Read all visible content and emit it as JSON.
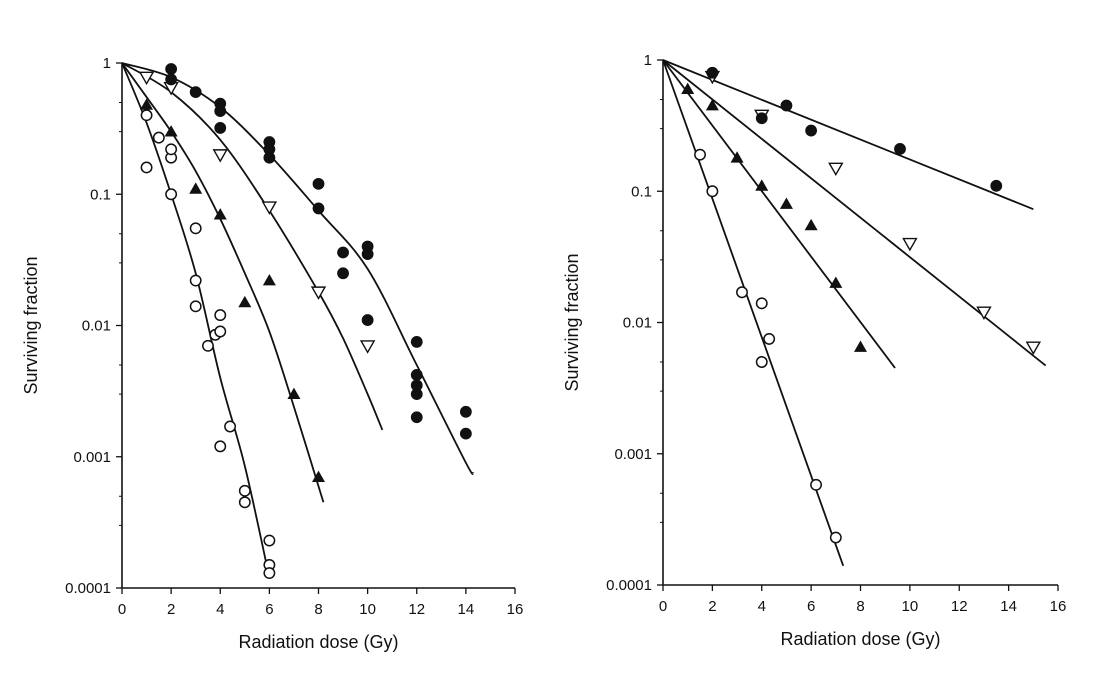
{
  "chart_data": [
    {
      "type": "scatter",
      "xlabel": "Radiation dose (Gy)",
      "ylabel": "Surviving fraction",
      "xlim": [
        0,
        16
      ],
      "ylim": [
        0.0001,
        1
      ],
      "yscale": "log",
      "x_ticks": [
        "0",
        "2",
        "4",
        "6",
        "8",
        "10",
        "12",
        "14",
        "16"
      ],
      "y_ticks": [
        {
          "value": 1,
          "label": "1"
        },
        {
          "value": 0.1,
          "label": "0.1"
        },
        {
          "value": 0.01,
          "label": "0.01"
        },
        {
          "value": 0.001,
          "label": "0.001"
        },
        {
          "value": 0.0001,
          "label": "0.0001"
        }
      ],
      "series": [
        {
          "marker": "open-circle",
          "fit_curve": [
            [
              0,
              1
            ],
            [
              1,
              0.35
            ],
            [
              2,
              0.1
            ],
            [
              3,
              0.025
            ],
            [
              4,
              0.004
            ],
            [
              5,
              0.00085
            ],
            [
              6,
              0.00012
            ]
          ],
          "points": [
            [
              1,
              0.16
            ],
            [
              1,
              0.4
            ],
            [
              1.5,
              0.27
            ],
            [
              2,
              0.19
            ],
            [
              2,
              0.22
            ],
            [
              2,
              0.1
            ],
            [
              3,
              0.055
            ],
            [
              3,
              0.022
            ],
            [
              3,
              0.014
            ],
            [
              3.5,
              0.007
            ],
            [
              3.8,
              0.0085
            ],
            [
              4,
              0.009
            ],
            [
              4,
              0.012
            ],
            [
              4,
              0.0012
            ],
            [
              4.4,
              0.0017
            ],
            [
              5,
              0.00055
            ],
            [
              5,
              0.00045
            ],
            [
              6,
              0.00023
            ],
            [
              6,
              0.00015
            ],
            [
              6,
              0.00013
            ]
          ]
        },
        {
          "marker": "filled-triangle",
          "fit_curve": [
            [
              0,
              1
            ],
            [
              1,
              0.55
            ],
            [
              2,
              0.3
            ],
            [
              3,
              0.15
            ],
            [
              4,
              0.065
            ],
            [
              5,
              0.025
            ],
            [
              6,
              0.009
            ],
            [
              7,
              0.0024
            ],
            [
              8.2,
              0.00045
            ]
          ],
          "points": [
            [
              1,
              0.48
            ],
            [
              2,
              0.3
            ],
            [
              3,
              0.11
            ],
            [
              4,
              0.07
            ],
            [
              5,
              0.015
            ],
            [
              6,
              0.022
            ],
            [
              7,
              0.003
            ],
            [
              8,
              0.0007
            ]
          ]
        },
        {
          "marker": "open-triangle-down",
          "fit_curve": [
            [
              0,
              1
            ],
            [
              2,
              0.6
            ],
            [
              4,
              0.26
            ],
            [
              6,
              0.075
            ],
            [
              8,
              0.018
            ],
            [
              9,
              0.008
            ],
            [
              10,
              0.003
            ],
            [
              10.6,
              0.0016
            ]
          ],
          "points": [
            [
              1,
              0.78
            ],
            [
              2,
              0.65
            ],
            [
              4,
              0.2
            ],
            [
              6,
              0.08
            ],
            [
              8,
              0.018
            ],
            [
              10,
              0.007
            ]
          ]
        },
        {
          "marker": "filled-circle",
          "fit_curve": [
            [
              0,
              1
            ],
            [
              2,
              0.78
            ],
            [
              4,
              0.46
            ],
            [
              6,
              0.2
            ],
            [
              8,
              0.075
            ],
            [
              10,
              0.027
            ],
            [
              12,
              0.005
            ],
            [
              14,
              0.0009
            ],
            [
              14.3,
              0.00075
            ]
          ],
          "points": [
            [
              2,
              0.9
            ],
            [
              2,
              0.75
            ],
            [
              3,
              0.6
            ],
            [
              4,
              0.49
            ],
            [
              4,
              0.43
            ],
            [
              4,
              0.32
            ],
            [
              6,
              0.25
            ],
            [
              6,
              0.22
            ],
            [
              6,
              0.19
            ],
            [
              8,
              0.12
            ],
            [
              8,
              0.078
            ],
            [
              9,
              0.036
            ],
            [
              9,
              0.025
            ],
            [
              10,
              0.04
            ],
            [
              10,
              0.035
            ],
            [
              10,
              0.011
            ],
            [
              12,
              0.0075
            ],
            [
              12,
              0.0042
            ],
            [
              12,
              0.003
            ],
            [
              12,
              0.0035
            ],
            [
              12,
              0.002
            ],
            [
              14,
              0.0022
            ],
            [
              14,
              0.0015
            ]
          ]
        }
      ]
    },
    {
      "type": "scatter",
      "xlabel": "Radiation dose (Gy)",
      "ylabel": "Surviving fraction",
      "xlim": [
        0,
        16
      ],
      "ylim": [
        0.0001,
        1
      ],
      "yscale": "log",
      "x_ticks": [
        "0",
        "2",
        "4",
        "6",
        "8",
        "10",
        "12",
        "14",
        "16"
      ],
      "y_ticks": [
        {
          "value": 1,
          "label": "1"
        },
        {
          "value": 0.1,
          "label": "0.1"
        },
        {
          "value": 0.01,
          "label": "0.01"
        },
        {
          "value": 0.001,
          "label": "0.001"
        },
        {
          "value": 0.0001,
          "label": "0.0001"
        }
      ],
      "series": [
        {
          "marker": "open-circle",
          "fit_curve": [
            [
              0,
              1
            ],
            [
              7.3,
              0.00014
            ]
          ],
          "points": [
            [
              1.5,
              0.19
            ],
            [
              2,
              0.1
            ],
            [
              3.2,
              0.017
            ],
            [
              4,
              0.014
            ],
            [
              4,
              0.005
            ],
            [
              4.3,
              0.0075
            ],
            [
              6.2,
              0.00058
            ],
            [
              7,
              0.00023
            ]
          ]
        },
        {
          "marker": "filled-triangle",
          "fit_curve": [
            [
              0,
              1
            ],
            [
              9.4,
              0.0045
            ]
          ],
          "points": [
            [
              1,
              0.6
            ],
            [
              2,
              0.45
            ],
            [
              3,
              0.18
            ],
            [
              4,
              0.11
            ],
            [
              5,
              0.08
            ],
            [
              6,
              0.055
            ],
            [
              7,
              0.02
            ],
            [
              8,
              0.0065
            ]
          ]
        },
        {
          "marker": "open-triangle-down",
          "fit_curve": [
            [
              0,
              1
            ],
            [
              15.5,
              0.0047
            ]
          ],
          "points": [
            [
              2,
              0.75
            ],
            [
              4,
              0.38
            ],
            [
              7,
              0.15
            ],
            [
              10,
              0.04
            ],
            [
              13,
              0.012
            ],
            [
              15,
              0.0065
            ]
          ]
        },
        {
          "marker": "filled-circle",
          "fit_curve": [
            [
              0,
              1
            ],
            [
              15,
              0.073
            ]
          ],
          "points": [
            [
              2,
              0.8
            ],
            [
              4,
              0.36
            ],
            [
              5,
              0.45
            ],
            [
              6,
              0.29
            ],
            [
              9.6,
              0.21
            ],
            [
              13.5,
              0.11
            ]
          ]
        }
      ]
    }
  ]
}
